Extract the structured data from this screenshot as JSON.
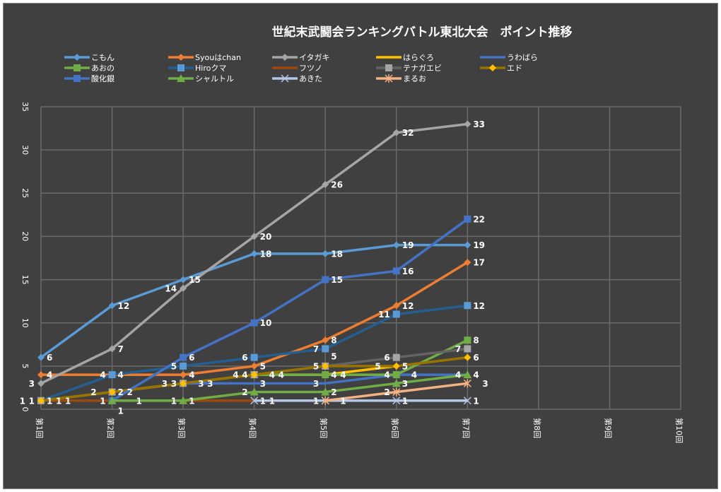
{
  "chart_data": {
    "type": "line",
    "title": "世紀末武闘会ランキングバトル東北大会　ポイント推移",
    "xlabel": "",
    "ylabel": "",
    "categories": [
      "第1回",
      "第2回",
      "第3回",
      "第4回",
      "第5回",
      "第6回",
      "第7回",
      "第8回",
      "第9回",
      "第10回"
    ],
    "ylim": [
      0,
      35
    ],
    "yticks": [
      0,
      5,
      10,
      15,
      20,
      25,
      30,
      35
    ],
    "grid": true,
    "legend_position": "top",
    "series": [
      {
        "name": "こもん",
        "color": "#5b9bd5",
        "marker": "diamond",
        "values": [
          6,
          12,
          15,
          18,
          18,
          19,
          19,
          null,
          null,
          null
        ]
      },
      {
        "name": "Syouはchan",
        "color": "#ed7d31",
        "marker": "diamond",
        "values": [
          4,
          4,
          4,
          5,
          8,
          12,
          17,
          null,
          null,
          null
        ]
      },
      {
        "name": "イタガキ",
        "color": "#a5a5a5",
        "marker": "diamond",
        "values": [
          3,
          7,
          14,
          20,
          26,
          32,
          33,
          null,
          null,
          null
        ]
      },
      {
        "name": "はらぐろ",
        "color": "#ffc000",
        "marker": "none",
        "values": [
          1,
          2,
          3,
          4,
          4,
          5,
          null,
          null,
          null,
          null
        ]
      },
      {
        "name": "うわばら",
        "color": "#4472c4",
        "marker": "none",
        "values": [
          null,
          null,
          3,
          3,
          3,
          4,
          4,
          null,
          null,
          null
        ]
      },
      {
        "name": "あおの",
        "color": "#70ad47",
        "marker": "square",
        "values": [
          null,
          null,
          null,
          4,
          4,
          4,
          8,
          null,
          null,
          null
        ]
      },
      {
        "name": "Hiroクマ",
        "color": "#255e91",
        "markerColor": "#5b9bd5",
        "marker": "square",
        "values": [
          1,
          4,
          5,
          6,
          7,
          11,
          12,
          null,
          null,
          null
        ]
      },
      {
        "name": "フツノ",
        "color": "#9e480e",
        "marker": "none",
        "values": [
          1,
          1,
          1,
          1,
          null,
          null,
          null,
          null,
          null,
          null
        ]
      },
      {
        "name": "テナガエビ",
        "color": "#636363",
        "markerColor": "#a5a5a5",
        "marker": "square",
        "values": [
          1,
          2,
          3,
          4,
          5,
          6,
          7,
          null,
          null,
          null
        ]
      },
      {
        "name": "エド",
        "color": "#997300",
        "markerColor": "#ffc000",
        "marker": "diamond",
        "values": [
          1,
          2,
          3,
          4,
          5,
          5,
          6,
          null,
          null,
          null
        ]
      },
      {
        "name": "酸化銀",
        "color": "#4472c4",
        "marker": "square",
        "values": [
          null,
          1,
          6,
          10,
          15,
          16,
          22,
          null,
          null,
          null
        ]
      },
      {
        "name": "シャルトル",
        "color": "#70ad47",
        "marker": "triangle",
        "values": [
          null,
          1,
          1,
          2,
          2,
          3,
          4,
          null,
          null,
          null
        ]
      },
      {
        "name": "あきた",
        "color": "#b4c7e7",
        "marker": "x",
        "values": [
          null,
          null,
          null,
          1,
          1,
          1,
          1,
          null,
          null,
          null
        ]
      },
      {
        "name": "まるお",
        "color": "#f4b183",
        "marker": "star",
        "values": [
          null,
          null,
          null,
          null,
          1,
          2,
          3,
          null,
          null,
          null
        ]
      }
    ]
  }
}
